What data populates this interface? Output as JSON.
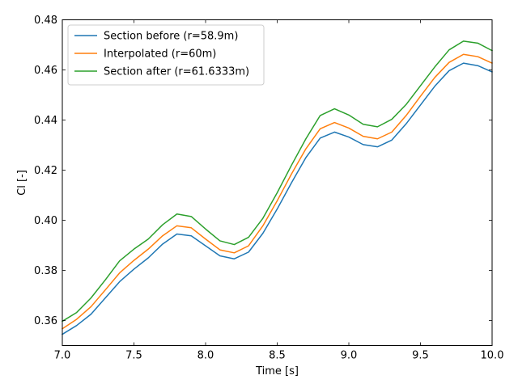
{
  "chart_data": {
    "type": "line",
    "title": "",
    "xlabel": "Time [s]",
    "ylabel": "Cl [-]",
    "xlim": [
      7.0,
      10.0
    ],
    "ylim": [
      0.35,
      0.48
    ],
    "grid": false,
    "legend_position": "top-left",
    "x_ticks": [
      7.0,
      7.5,
      8.0,
      8.5,
      9.0,
      9.5,
      10.0
    ],
    "x_tick_labels": [
      "7.0",
      "7.5",
      "8.0",
      "8.5",
      "9.0",
      "9.5",
      "10.0"
    ],
    "y_ticks": [
      0.36,
      0.38,
      0.4,
      0.42,
      0.44,
      0.46,
      0.48
    ],
    "y_tick_labels": [
      "0.36",
      "0.38",
      "0.40",
      "0.42",
      "0.44",
      "0.46",
      "0.48"
    ],
    "x": [
      7.0,
      7.1,
      7.2,
      7.3,
      7.4,
      7.5,
      7.6,
      7.7,
      7.8,
      7.9,
      8.0,
      8.1,
      8.2,
      8.3,
      8.4,
      8.5,
      8.6,
      8.7,
      8.8,
      8.9,
      9.0,
      9.1,
      9.2,
      9.3,
      9.4,
      9.5,
      9.6,
      9.7,
      9.8,
      9.9,
      10.0
    ],
    "series": [
      {
        "name": "Section before (r=58.9m)",
        "color": "#1f77b4",
        "values": [
          0.3545,
          0.358,
          0.3625,
          0.369,
          0.3755,
          0.3805,
          0.385,
          0.3905,
          0.3945,
          0.3938,
          0.3898,
          0.3858,
          0.3846,
          0.3873,
          0.3948,
          0.4045,
          0.415,
          0.425,
          0.4328,
          0.4352,
          0.4332,
          0.4302,
          0.4293,
          0.432,
          0.4385,
          0.446,
          0.4535,
          0.4597,
          0.4627,
          0.4617,
          0.4592
        ]
      },
      {
        "name": "Interpolated (r=60m)",
        "color": "#ff7f0e",
        "values": [
          0.3567,
          0.3605,
          0.3655,
          0.3722,
          0.379,
          0.384,
          0.3885,
          0.3938,
          0.3978,
          0.397,
          0.3925,
          0.3882,
          0.387,
          0.3898,
          0.3978,
          0.4078,
          0.4185,
          0.4285,
          0.4365,
          0.439,
          0.4368,
          0.4335,
          0.4325,
          0.4352,
          0.4418,
          0.4495,
          0.457,
          0.463,
          0.4662,
          0.4653,
          0.4627
        ]
      },
      {
        "name": "Section after (r=61.6333m)",
        "color": "#2ca02c",
        "values": [
          0.3597,
          0.3632,
          0.369,
          0.3762,
          0.3838,
          0.3885,
          0.3925,
          0.3982,
          0.4025,
          0.4015,
          0.3965,
          0.3918,
          0.3903,
          0.3932,
          0.4008,
          0.411,
          0.422,
          0.4325,
          0.4418,
          0.4445,
          0.442,
          0.4383,
          0.4373,
          0.4403,
          0.4462,
          0.4537,
          0.4612,
          0.468,
          0.4715,
          0.4707,
          0.4677
        ]
      }
    ]
  }
}
